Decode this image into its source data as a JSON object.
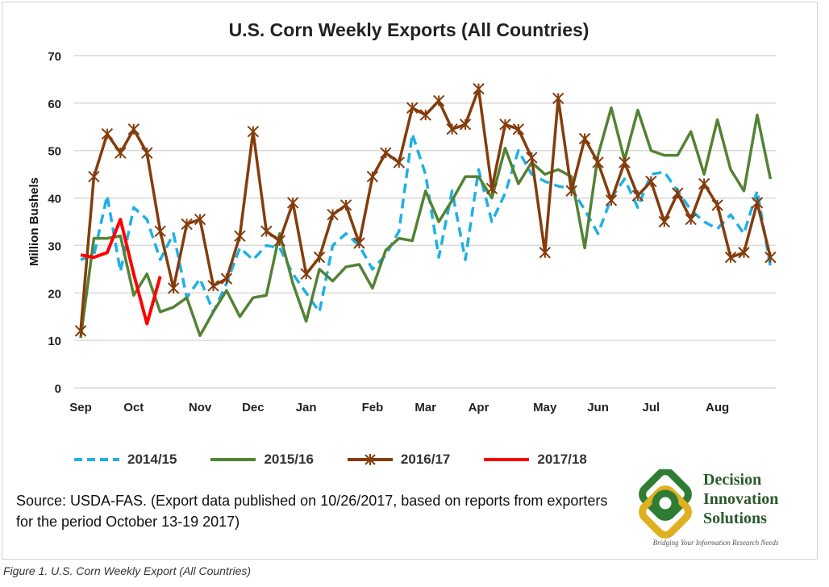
{
  "chart_data": {
    "type": "line",
    "title": "U.S. Corn Weekly Exports (All Countries)",
    "ylabel": "Million Bushels",
    "xlabel": "",
    "ylim": [
      0,
      70
    ],
    "yticks": [
      0,
      10,
      20,
      30,
      40,
      50,
      60,
      70
    ],
    "grid": true,
    "legend_placement": "bottom",
    "x_month_labels": [
      {
        "label": "Sep",
        "week": 0
      },
      {
        "label": "Oct",
        "week": 4
      },
      {
        "label": "Nov",
        "week": 9
      },
      {
        "label": "Dec",
        "week": 13
      },
      {
        "label": "Jan",
        "week": 17
      },
      {
        "label": "Feb",
        "week": 22
      },
      {
        "label": "Mar",
        "week": 26
      },
      {
        "label": "Apr",
        "week": 30
      },
      {
        "label": "May",
        "week": 35
      },
      {
        "label": "Jun",
        "week": 39
      },
      {
        "label": "Jul",
        "week": 43
      },
      {
        "label": "Aug",
        "week": 48
      }
    ],
    "series": [
      {
        "name": "2014/15",
        "color": "#1fb0e6",
        "style": "dashed",
        "values": [
          27,
          28,
          40.5,
          24.5,
          38,
          35.5,
          27,
          32.5,
          19,
          23,
          16,
          22,
          29.5,
          27,
          30,
          29.5,
          24,
          20,
          16,
          30,
          32.5,
          30,
          25,
          28,
          33,
          53.5,
          45,
          27.5,
          41.5,
          27,
          46,
          35,
          41,
          50,
          45,
          43.5,
          42.5,
          42,
          37.5,
          32.5,
          40,
          44,
          38,
          45,
          45.5,
          41.5,
          37.5,
          35,
          33.5,
          36.5,
          32.5,
          41.5,
          25.5
        ]
      },
      {
        "name": "2015/16",
        "color": "#548235",
        "style": "solid",
        "values": [
          10.5,
          31.5,
          31.5,
          32,
          19.5,
          24,
          16,
          17,
          19,
          11,
          16,
          20.5,
          15,
          19,
          19.5,
          32.5,
          22,
          14,
          25,
          22.5,
          25.5,
          26,
          21,
          29,
          31.5,
          31,
          41.5,
          35,
          39.5,
          44.5,
          44.5,
          40,
          50.5,
          43,
          47.5,
          45,
          46,
          44.5,
          29.5,
          49,
          59,
          48,
          58.5,
          50,
          49,
          49,
          54,
          45,
          56.5,
          46,
          41.5,
          57.5,
          44
        ]
      },
      {
        "name": "2016/17",
        "color": "#843c0c",
        "style": "star-marker",
        "values": [
          12,
          44.5,
          53.5,
          49.5,
          54.5,
          49.5,
          33,
          21,
          34.5,
          35.5,
          21.5,
          23,
          32,
          54,
          33,
          31,
          39,
          24,
          27.5,
          36.5,
          38.5,
          30.5,
          44.5,
          49.5,
          47.5,
          59,
          57.5,
          60.5,
          54.5,
          55.5,
          63,
          42,
          55.5,
          54.5,
          48.5,
          28.5,
          61,
          41.5,
          52.5,
          47.5,
          39.5,
          47.5,
          40.5,
          43.5,
          35,
          41,
          35.5,
          43,
          38.5,
          27.5,
          28.5,
          39,
          27.5
        ]
      },
      {
        "name": "2017/18",
        "color": "#ff0000",
        "style": "solid-thick",
        "values": [
          28,
          27.5,
          28.5,
          35.5,
          24,
          13.5,
          23.5
        ]
      }
    ]
  },
  "source": "Source: USDA-FAS. (Export data published  on 10/26/2017, based on reports from exporters for the period October 13-19 2017)",
  "logo": {
    "line1": "Decision",
    "line2": "Innovation",
    "line3": "Solutions",
    "tagline": "Bridging Your Information Research Needs"
  },
  "caption": "Figure 1. U.S. Corn Weekly Export (All Countries)"
}
